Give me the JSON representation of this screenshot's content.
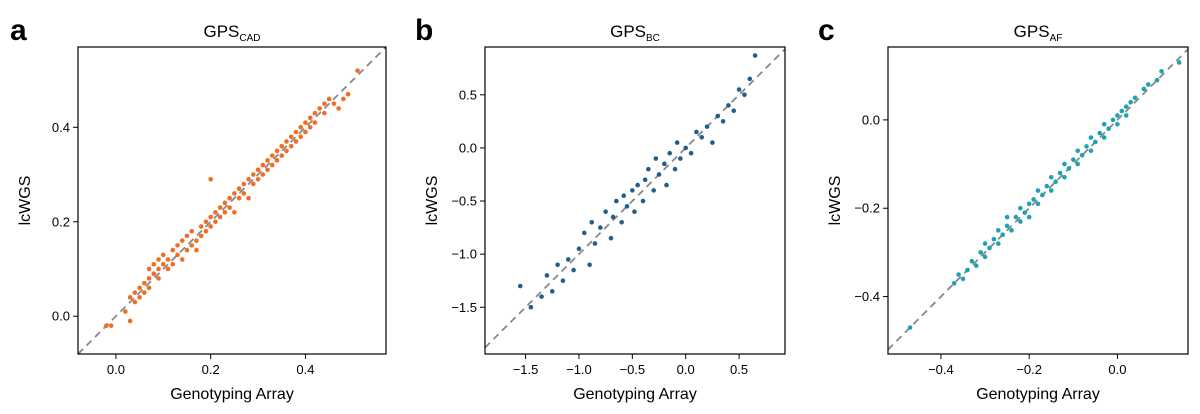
{
  "chart_data": [
    {
      "type": "scatter",
      "panel": "a",
      "title": "GPS",
      "title_sub": "CAD",
      "xlabel": "Genotyping Array",
      "ylabel": "lcWGS",
      "xlim": [
        -0.08,
        0.57
      ],
      "ylim": [
        -0.08,
        0.57
      ],
      "xticks": [
        0.0,
        0.2,
        0.4
      ],
      "yticks": [
        0.0,
        0.2,
        0.4
      ],
      "xtick_labels": [
        "0.0",
        "0.2",
        "0.4"
      ],
      "ytick_labels": [
        "0.0",
        "0.2",
        "0.4"
      ],
      "color": "#f26c21",
      "reference_line": "y = x",
      "reference_color": "#888888",
      "points": [
        [
          -0.02,
          -0.02
        ],
        [
          -0.01,
          -0.02
        ],
        [
          0.02,
          0.01
        ],
        [
          0.03,
          -0.01
        ],
        [
          0.03,
          0.04
        ],
        [
          0.04,
          0.05
        ],
        [
          0.04,
          0.03
        ],
        [
          0.05,
          0.06
        ],
        [
          0.05,
          0.04
        ],
        [
          0.06,
          0.07
        ],
        [
          0.06,
          0.05
        ],
        [
          0.07,
          0.08
        ],
        [
          0.07,
          0.06
        ],
        [
          0.07,
          0.1
        ],
        [
          0.08,
          0.09
        ],
        [
          0.08,
          0.11
        ],
        [
          0.09,
          0.08
        ],
        [
          0.09,
          0.12
        ],
        [
          0.09,
          0.1
        ],
        [
          0.1,
          0.11
        ],
        [
          0.1,
          0.13
        ],
        [
          0.11,
          0.1
        ],
        [
          0.11,
          0.12
        ],
        [
          0.12,
          0.14
        ],
        [
          0.12,
          0.11
        ],
        [
          0.13,
          0.13
        ],
        [
          0.13,
          0.15
        ],
        [
          0.14,
          0.12
        ],
        [
          0.14,
          0.16
        ],
        [
          0.15,
          0.14
        ],
        [
          0.15,
          0.17
        ],
        [
          0.16,
          0.15
        ],
        [
          0.16,
          0.18
        ],
        [
          0.17,
          0.16
        ],
        [
          0.17,
          0.14
        ],
        [
          0.18,
          0.19
        ],
        [
          0.18,
          0.17
        ],
        [
          0.19,
          0.2
        ],
        [
          0.19,
          0.18
        ],
        [
          0.2,
          0.21
        ],
        [
          0.2,
          0.19
        ],
        [
          0.2,
          0.29
        ],
        [
          0.21,
          0.22
        ],
        [
          0.21,
          0.2
        ],
        [
          0.22,
          0.23
        ],
        [
          0.22,
          0.21
        ],
        [
          0.23,
          0.24
        ],
        [
          0.23,
          0.22
        ],
        [
          0.24,
          0.25
        ],
        [
          0.24,
          0.23
        ],
        [
          0.25,
          0.26
        ],
        [
          0.25,
          0.22
        ],
        [
          0.26,
          0.27
        ],
        [
          0.26,
          0.25
        ],
        [
          0.27,
          0.28
        ],
        [
          0.27,
          0.26
        ],
        [
          0.28,
          0.29
        ],
        [
          0.28,
          0.25
        ],
        [
          0.29,
          0.3
        ],
        [
          0.29,
          0.28
        ],
        [
          0.3,
          0.31
        ],
        [
          0.3,
          0.29
        ],
        [
          0.31,
          0.32
        ],
        [
          0.31,
          0.3
        ],
        [
          0.32,
          0.33
        ],
        [
          0.32,
          0.31
        ],
        [
          0.33,
          0.34
        ],
        [
          0.33,
          0.32
        ],
        [
          0.34,
          0.35
        ],
        [
          0.34,
          0.33
        ],
        [
          0.35,
          0.36
        ],
        [
          0.35,
          0.34
        ],
        [
          0.36,
          0.37
        ],
        [
          0.36,
          0.35
        ],
        [
          0.37,
          0.38
        ],
        [
          0.37,
          0.36
        ],
        [
          0.38,
          0.39
        ],
        [
          0.38,
          0.37
        ],
        [
          0.39,
          0.38
        ],
        [
          0.39,
          0.4
        ],
        [
          0.4,
          0.41
        ],
        [
          0.4,
          0.39
        ],
        [
          0.41,
          0.42
        ],
        [
          0.41,
          0.4
        ],
        [
          0.42,
          0.43
        ],
        [
          0.42,
          0.41
        ],
        [
          0.43,
          0.44
        ],
        [
          0.44,
          0.45
        ],
        [
          0.44,
          0.43
        ],
        [
          0.45,
          0.46
        ],
        [
          0.46,
          0.45
        ],
        [
          0.47,
          0.44
        ],
        [
          0.48,
          0.46
        ],
        [
          0.49,
          0.47
        ],
        [
          0.51,
          0.52
        ]
      ]
    },
    {
      "type": "scatter",
      "panel": "b",
      "title": "GPS",
      "title_sub": "BC",
      "xlabel": "Genotyping Array",
      "ylabel": "lcWGS",
      "xlim": [
        -1.88,
        0.93
      ],
      "ylim": [
        -1.94,
        0.95
      ],
      "xticks": [
        -1.5,
        -1.0,
        -0.5,
        0.0,
        0.5
      ],
      "yticks": [
        -1.5,
        -1.0,
        -0.5,
        0.0,
        0.5
      ],
      "xtick_labels": [
        "−1.5",
        "−1.0",
        "−0.5",
        "0.0",
        "0.5"
      ],
      "ytick_labels": [
        "−1.5",
        "−1.0",
        "−0.5",
        "0.0",
        "0.5"
      ],
      "color": "#215f8a",
      "reference_line": "y = x",
      "reference_color": "#888888",
      "points": [
        [
          -1.55,
          -1.3
        ],
        [
          -1.45,
          -1.5
        ],
        [
          -1.35,
          -1.4
        ],
        [
          -1.3,
          -1.2
        ],
        [
          -1.25,
          -1.35
        ],
        [
          -1.2,
          -1.1
        ],
        [
          -1.15,
          -1.25
        ],
        [
          -1.1,
          -1.05
        ],
        [
          -1.05,
          -1.15
        ],
        [
          -1.0,
          -0.95
        ],
        [
          -0.95,
          -0.8
        ],
        [
          -0.9,
          -1.1
        ],
        [
          -0.88,
          -0.7
        ],
        [
          -0.85,
          -0.9
        ],
        [
          -0.8,
          -0.75
        ],
        [
          -0.75,
          -0.6
        ],
        [
          -0.7,
          -0.85
        ],
        [
          -0.68,
          -0.65
        ],
        [
          -0.65,
          -0.5
        ],
        [
          -0.6,
          -0.7
        ],
        [
          -0.58,
          -0.45
        ],
        [
          -0.55,
          -0.55
        ],
        [
          -0.5,
          -0.4
        ],
        [
          -0.48,
          -0.6
        ],
        [
          -0.45,
          -0.35
        ],
        [
          -0.4,
          -0.5
        ],
        [
          -0.38,
          -0.3
        ],
        [
          -0.35,
          -0.2
        ],
        [
          -0.3,
          -0.4
        ],
        [
          -0.28,
          -0.1
        ],
        [
          -0.25,
          -0.25
        ],
        [
          -0.2,
          -0.15
        ],
        [
          -0.18,
          -0.35
        ],
        [
          -0.15,
          -0.05
        ],
        [
          -0.1,
          -0.2
        ],
        [
          -0.08,
          0.05
        ],
        [
          -0.05,
          -0.1
        ],
        [
          0.0,
          0.0
        ],
        [
          0.05,
          -0.05
        ],
        [
          0.1,
          0.15
        ],
        [
          0.15,
          0.1
        ],
        [
          0.2,
          0.2
        ],
        [
          0.25,
          0.05
        ],
        [
          0.3,
          0.3
        ],
        [
          0.35,
          0.25
        ],
        [
          0.4,
          0.4
        ],
        [
          0.45,
          0.35
        ],
        [
          0.5,
          0.55
        ],
        [
          0.55,
          0.5
        ],
        [
          0.6,
          0.65
        ],
        [
          0.65,
          0.87
        ]
      ]
    },
    {
      "type": "scatter",
      "panel": "c",
      "title": "GPS",
      "title_sub": "AF",
      "xlabel": "Genotyping Array",
      "ylabel": "lcWGS",
      "xlim": [
        -0.52,
        0.16
      ],
      "ylim": [
        -0.53,
        0.165
      ],
      "xticks": [
        -0.4,
        -0.2,
        0.0
      ],
      "yticks": [
        -0.4,
        -0.2,
        0.0
      ],
      "xtick_labels": [
        "−0.4",
        "−0.2",
        "0.0"
      ],
      "ytick_labels": [
        "−0.4",
        "−0.2",
        "0.0"
      ],
      "color": "#1da2b4",
      "reference_line": "y = x",
      "reference_color": "#888888",
      "points": [
        [
          -0.47,
          -0.47
        ],
        [
          -0.37,
          -0.37
        ],
        [
          -0.36,
          -0.35
        ],
        [
          -0.35,
          -0.36
        ],
        [
          -0.34,
          -0.34
        ],
        [
          -0.33,
          -0.32
        ],
        [
          -0.32,
          -0.33
        ],
        [
          -0.31,
          -0.3
        ],
        [
          -0.3,
          -0.31
        ],
        [
          -0.3,
          -0.28
        ],
        [
          -0.29,
          -0.29
        ],
        [
          -0.28,
          -0.27
        ],
        [
          -0.27,
          -0.28
        ],
        [
          -0.27,
          -0.25
        ],
        [
          -0.26,
          -0.26
        ],
        [
          -0.25,
          -0.24
        ],
        [
          -0.25,
          -0.22
        ],
        [
          -0.24,
          -0.25
        ],
        [
          -0.23,
          -0.22
        ],
        [
          -0.22,
          -0.23
        ],
        [
          -0.22,
          -0.2
        ],
        [
          -0.21,
          -0.21
        ],
        [
          -0.2,
          -0.19
        ],
        [
          -0.2,
          -0.22
        ],
        [
          -0.19,
          -0.18
        ],
        [
          -0.18,
          -0.19
        ],
        [
          -0.18,
          -0.16
        ],
        [
          -0.17,
          -0.17
        ],
        [
          -0.16,
          -0.15
        ],
        [
          -0.15,
          -0.16
        ],
        [
          -0.15,
          -0.13
        ],
        [
          -0.14,
          -0.14
        ],
        [
          -0.13,
          -0.12
        ],
        [
          -0.12,
          -0.13
        ],
        [
          -0.12,
          -0.1
        ],
        [
          -0.11,
          -0.11
        ],
        [
          -0.1,
          -0.09
        ],
        [
          -0.09,
          -0.1
        ],
        [
          -0.09,
          -0.07
        ],
        [
          -0.08,
          -0.08
        ],
        [
          -0.07,
          -0.06
        ],
        [
          -0.06,
          -0.07
        ],
        [
          -0.06,
          -0.04
        ],
        [
          -0.05,
          -0.05
        ],
        [
          -0.04,
          -0.03
        ],
        [
          -0.03,
          -0.04
        ],
        [
          -0.03,
          -0.01
        ],
        [
          -0.02,
          -0.02
        ],
        [
          -0.01,
          0.0
        ],
        [
          0.0,
          -0.01
        ],
        [
          0.0,
          0.01
        ],
        [
          0.01,
          0.02
        ],
        [
          0.02,
          0.01
        ],
        [
          0.02,
          0.03
        ],
        [
          0.03,
          0.04
        ],
        [
          0.04,
          0.05
        ],
        [
          0.06,
          0.07
        ],
        [
          0.07,
          0.08
        ],
        [
          0.09,
          0.09
        ],
        [
          0.1,
          0.11
        ],
        [
          0.14,
          0.13
        ]
      ]
    }
  ]
}
